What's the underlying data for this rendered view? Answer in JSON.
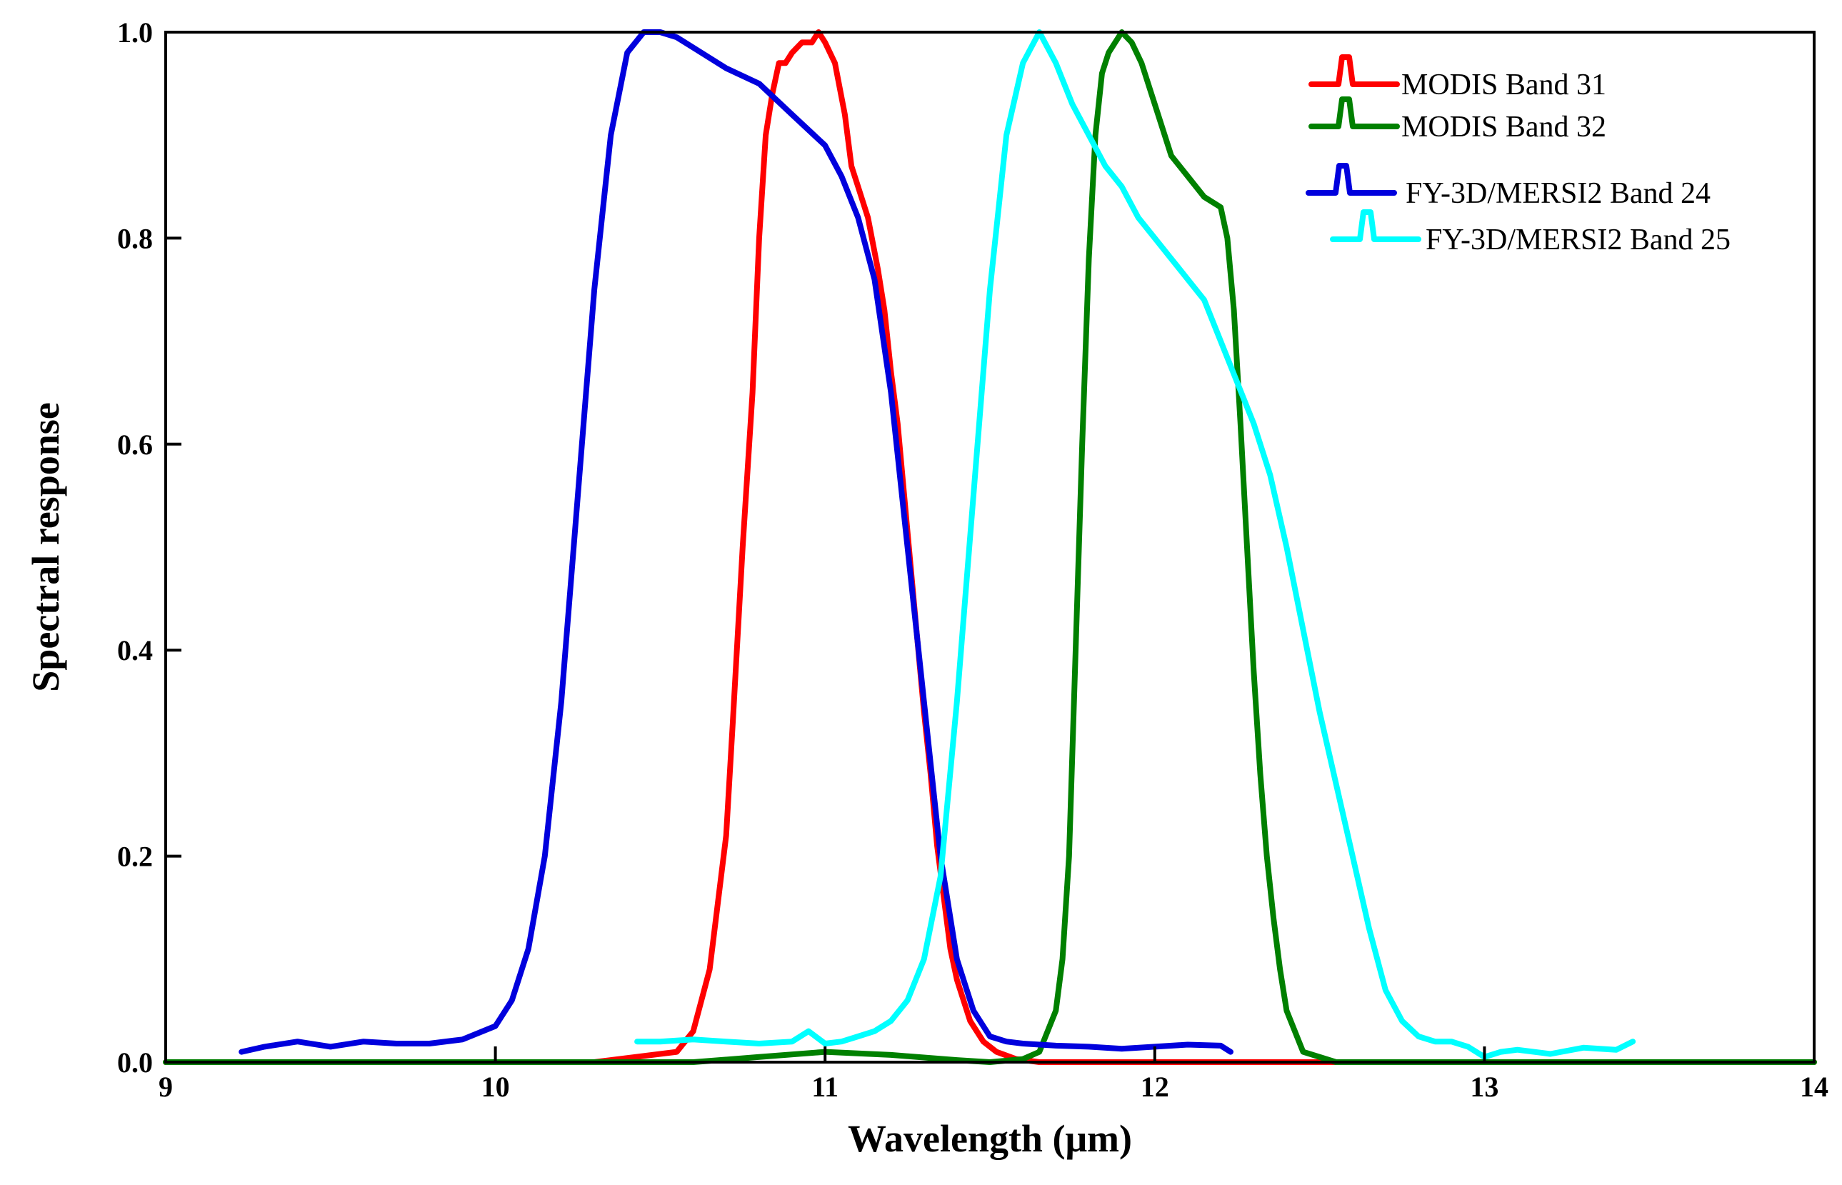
{
  "chart_data": {
    "type": "line",
    "title": "",
    "xlabel": "Wavelength (μm)",
    "ylabel": "Spectral response",
    "xlim": [
      9,
      14
    ],
    "ylim": [
      0,
      1.0
    ],
    "xticks": [
      9,
      10,
      11,
      12,
      13,
      14
    ],
    "xtick_labels": [
      "9",
      "10",
      "11",
      "12",
      "13",
      "14"
    ],
    "yticks": [
      0,
      0.2,
      0.4,
      0.6,
      0.8,
      1.0
    ],
    "ytick_labels": [
      "0.0",
      "0.2",
      "0.4",
      "0.6",
      "0.8",
      "1.0"
    ],
    "grid": false,
    "legend_position": "top-right",
    "series": [
      {
        "name": "MODIS Band 31",
        "color": "#ff0000",
        "x": [
          9.0,
          10.3,
          10.55,
          10.6,
          10.65,
          10.7,
          10.72,
          10.75,
          10.78,
          10.8,
          10.82,
          10.84,
          10.86,
          10.88,
          10.9,
          10.93,
          10.96,
          10.98,
          11.0,
          11.03,
          11.06,
          11.08,
          11.1,
          11.13,
          11.16,
          11.18,
          11.2,
          11.22,
          11.24,
          11.26,
          11.28,
          11.3,
          11.32,
          11.34,
          11.36,
          11.38,
          11.4,
          11.44,
          11.48,
          11.52,
          11.58,
          11.65,
          14.0
        ],
        "y": [
          0.0,
          0.0,
          0.01,
          0.03,
          0.09,
          0.22,
          0.33,
          0.5,
          0.65,
          0.8,
          0.9,
          0.94,
          0.97,
          0.97,
          0.98,
          0.99,
          0.99,
          1.0,
          0.99,
          0.97,
          0.92,
          0.87,
          0.85,
          0.82,
          0.77,
          0.73,
          0.67,
          0.62,
          0.55,
          0.48,
          0.41,
          0.34,
          0.28,
          0.21,
          0.16,
          0.11,
          0.08,
          0.04,
          0.02,
          0.01,
          0.003,
          0.0,
          0.0
        ]
      },
      {
        "name": "MODIS Band 32",
        "color": "#008000",
        "x": [
          9.0,
          10.6,
          10.8,
          11.0,
          11.2,
          11.4,
          11.5,
          11.6,
          11.65,
          11.7,
          11.72,
          11.74,
          11.76,
          11.78,
          11.8,
          11.82,
          11.84,
          11.86,
          11.88,
          11.9,
          11.93,
          11.96,
          12.0,
          12.05,
          12.1,
          12.15,
          12.2,
          12.22,
          12.24,
          12.26,
          12.28,
          12.3,
          12.32,
          12.34,
          12.36,
          12.38,
          12.4,
          12.45,
          12.55,
          14.0
        ],
        "y": [
          0.0,
          0.0,
          0.005,
          0.01,
          0.007,
          0.002,
          0.0,
          0.003,
          0.01,
          0.05,
          0.1,
          0.2,
          0.4,
          0.6,
          0.78,
          0.9,
          0.96,
          0.98,
          0.99,
          1.0,
          0.99,
          0.97,
          0.93,
          0.88,
          0.86,
          0.84,
          0.83,
          0.8,
          0.73,
          0.62,
          0.5,
          0.38,
          0.28,
          0.2,
          0.14,
          0.09,
          0.05,
          0.01,
          0.0,
          0.0
        ]
      },
      {
        "name": "FY-3D/MERSI2 Band 24",
        "color": "#0000dd",
        "x": [
          9.23,
          9.3,
          9.4,
          9.5,
          9.6,
          9.7,
          9.8,
          9.9,
          10.0,
          10.05,
          10.1,
          10.15,
          10.2,
          10.25,
          10.3,
          10.35,
          10.4,
          10.45,
          10.5,
          10.55,
          10.6,
          10.7,
          10.8,
          10.9,
          11.0,
          11.05,
          11.1,
          11.15,
          11.2,
          11.25,
          11.3,
          11.35,
          11.4,
          11.45,
          11.5,
          11.55,
          11.6,
          11.7,
          11.8,
          11.9,
          12.0,
          12.1,
          12.2,
          12.23
        ],
        "y": [
          0.01,
          0.015,
          0.02,
          0.015,
          0.02,
          0.018,
          0.018,
          0.022,
          0.035,
          0.06,
          0.11,
          0.2,
          0.35,
          0.55,
          0.75,
          0.9,
          0.98,
          1.0,
          1.0,
          0.995,
          0.985,
          0.965,
          0.95,
          0.92,
          0.89,
          0.86,
          0.82,
          0.76,
          0.65,
          0.5,
          0.35,
          0.2,
          0.1,
          0.05,
          0.025,
          0.02,
          0.018,
          0.016,
          0.015,
          0.013,
          0.015,
          0.017,
          0.016,
          0.01
        ]
      },
      {
        "name": "FY-3D/MERSI2 Band 25",
        "color": "#00ffff",
        "x": [
          10.43,
          10.5,
          10.6,
          10.7,
          10.8,
          10.9,
          10.95,
          11.0,
          11.05,
          11.1,
          11.15,
          11.2,
          11.25,
          11.3,
          11.35,
          11.4,
          11.45,
          11.5,
          11.55,
          11.6,
          11.65,
          11.7,
          11.75,
          11.8,
          11.85,
          11.9,
          11.95,
          12.0,
          12.05,
          12.1,
          12.15,
          12.2,
          12.25,
          12.3,
          12.35,
          12.4,
          12.45,
          12.5,
          12.55,
          12.6,
          12.65,
          12.7,
          12.75,
          12.8,
          12.85,
          12.9,
          12.95,
          13.0,
          13.05,
          13.1,
          13.2,
          13.3,
          13.4,
          13.45
        ],
        "y": [
          0.02,
          0.02,
          0.022,
          0.02,
          0.018,
          0.02,
          0.03,
          0.018,
          0.02,
          0.025,
          0.03,
          0.04,
          0.06,
          0.1,
          0.18,
          0.35,
          0.55,
          0.75,
          0.9,
          0.97,
          1.0,
          0.97,
          0.93,
          0.9,
          0.87,
          0.85,
          0.82,
          0.8,
          0.78,
          0.76,
          0.74,
          0.7,
          0.66,
          0.62,
          0.57,
          0.5,
          0.42,
          0.34,
          0.27,
          0.2,
          0.13,
          0.07,
          0.04,
          0.025,
          0.02,
          0.02,
          0.015,
          0.005,
          0.01,
          0.012,
          0.008,
          0.014,
          0.012,
          0.02
        ]
      }
    ]
  }
}
